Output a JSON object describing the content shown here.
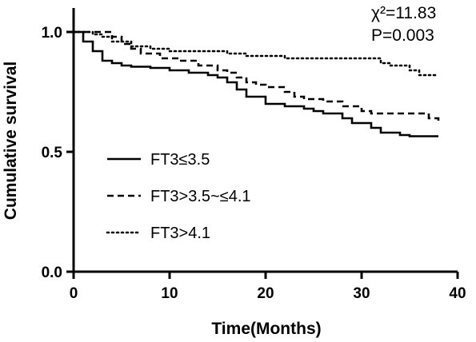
{
  "chart_data": {
    "type": "line",
    "title": "",
    "xlabel": "Time(Months)",
    "ylabel": "Cumulative survival",
    "xlim": [
      0,
      40
    ],
    "ylim": [
      0.0,
      1.0
    ],
    "x_ticks": [
      "0",
      "10",
      "20",
      "30",
      "40"
    ],
    "y_ticks": [
      "0.0",
      "0.5",
      "1.0"
    ],
    "grid": false,
    "legend_position": "lower-left",
    "annotations": [
      "χ²=11.83",
      "P=0.003"
    ],
    "series": [
      {
        "name": "FT3≤3.5",
        "line_style": "solid",
        "color": "#000000",
        "points": [
          [
            0,
            1.0
          ],
          [
            1,
            0.96
          ],
          [
            2,
            0.92
          ],
          [
            3,
            0.88
          ],
          [
            4,
            0.87
          ],
          [
            5,
            0.86
          ],
          [
            6,
            0.855
          ],
          [
            8,
            0.85
          ],
          [
            10,
            0.84
          ],
          [
            12,
            0.83
          ],
          [
            14,
            0.82
          ],
          [
            15,
            0.81
          ],
          [
            16,
            0.79
          ],
          [
            17,
            0.76
          ],
          [
            18,
            0.73
          ],
          [
            20,
            0.7
          ],
          [
            22,
            0.69
          ],
          [
            24,
            0.68
          ],
          [
            25,
            0.67
          ],
          [
            26,
            0.66
          ],
          [
            28,
            0.64
          ],
          [
            29,
            0.62
          ],
          [
            31,
            0.6
          ],
          [
            32,
            0.58
          ],
          [
            34,
            0.57
          ],
          [
            35,
            0.565
          ],
          [
            38,
            0.565
          ]
        ]
      },
      {
        "name": "FT3>3.5~≤4.1",
        "line_style": "dashed",
        "color": "#000000",
        "points": [
          [
            0,
            1.0
          ],
          [
            4,
            0.98
          ],
          [
            5,
            0.95
          ],
          [
            6,
            0.93
          ],
          [
            7,
            0.91
          ],
          [
            9,
            0.89
          ],
          [
            11,
            0.88
          ],
          [
            13,
            0.86
          ],
          [
            15,
            0.84
          ],
          [
            16,
            0.83
          ],
          [
            17,
            0.81
          ],
          [
            18,
            0.79
          ],
          [
            19,
            0.78
          ],
          [
            20,
            0.77
          ],
          [
            22,
            0.75
          ],
          [
            23,
            0.73
          ],
          [
            24,
            0.72
          ],
          [
            26,
            0.71
          ],
          [
            28,
            0.69
          ],
          [
            30,
            0.67
          ],
          [
            31,
            0.66
          ],
          [
            36,
            0.66
          ],
          [
            37,
            0.64
          ],
          [
            38,
            0.63
          ]
        ]
      },
      {
        "name": "FT3>4.1",
        "line_style": "dotted",
        "color": "#000000",
        "points": [
          [
            0,
            1.0
          ],
          [
            2,
            0.99
          ],
          [
            3,
            0.98
          ],
          [
            4,
            0.96
          ],
          [
            6,
            0.94
          ],
          [
            8,
            0.93
          ],
          [
            10,
            0.92
          ],
          [
            14,
            0.92
          ],
          [
            16,
            0.91
          ],
          [
            18,
            0.9
          ],
          [
            21,
            0.9
          ],
          [
            22,
            0.89
          ],
          [
            30,
            0.89
          ],
          [
            32,
            0.87
          ],
          [
            33,
            0.86
          ],
          [
            35,
            0.84
          ],
          [
            36,
            0.82
          ],
          [
            38,
            0.82
          ]
        ]
      }
    ]
  }
}
